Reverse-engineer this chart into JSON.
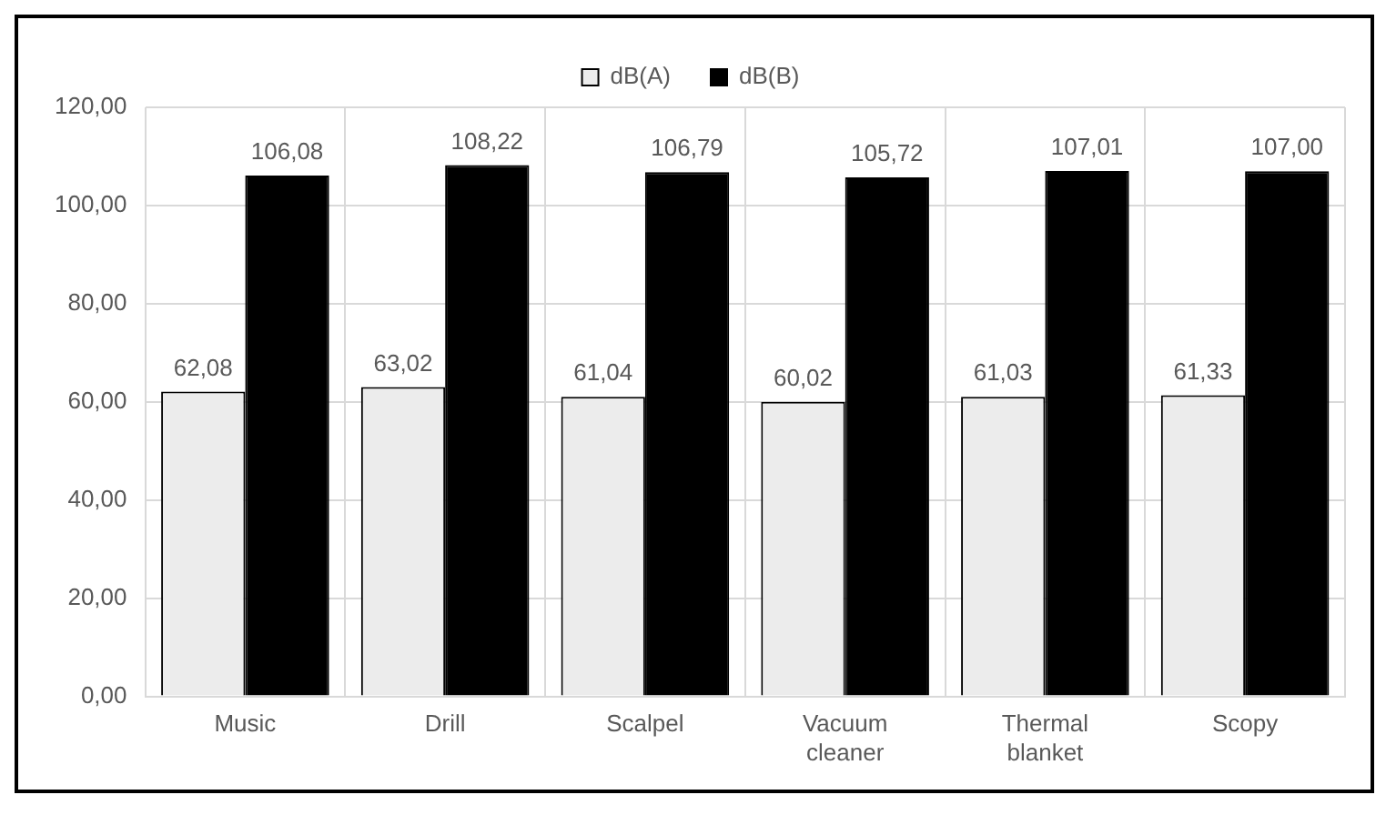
{
  "chart_data": {
    "type": "bar",
    "categories": [
      "Music",
      "Drill",
      "Scalpel",
      "Vacuum cleaner",
      "Thermal blanket",
      "Scopy"
    ],
    "series": [
      {
        "name": "dB(A)",
        "color": "#ececec",
        "values": [
          62.08,
          63.02,
          61.04,
          60.02,
          61.03,
          61.33
        ],
        "value_labels": [
          "62,08",
          "63,02",
          "61,04",
          "60,02",
          "61,03",
          "61,33"
        ]
      },
      {
        "name": "dB(B)",
        "color": "#000000",
        "values": [
          106.08,
          108.22,
          106.79,
          105.72,
          107.01,
          107.0
        ],
        "value_labels": [
          "106,08",
          "108,22",
          "106,79",
          "105,72",
          "107,01",
          "107,00"
        ]
      }
    ],
    "ylim": [
      0,
      120
    ],
    "yticks": [
      {
        "value": 0,
        "label": "0,00"
      },
      {
        "value": 20,
        "label": "20,00"
      },
      {
        "value": 40,
        "label": "40,00"
      },
      {
        "value": 60,
        "label": "60,00"
      },
      {
        "value": 80,
        "label": "80,00"
      },
      {
        "value": 100,
        "label": "100,00"
      },
      {
        "value": 120,
        "label": "120,00"
      }
    ],
    "grid": true,
    "legend": "top"
  }
}
